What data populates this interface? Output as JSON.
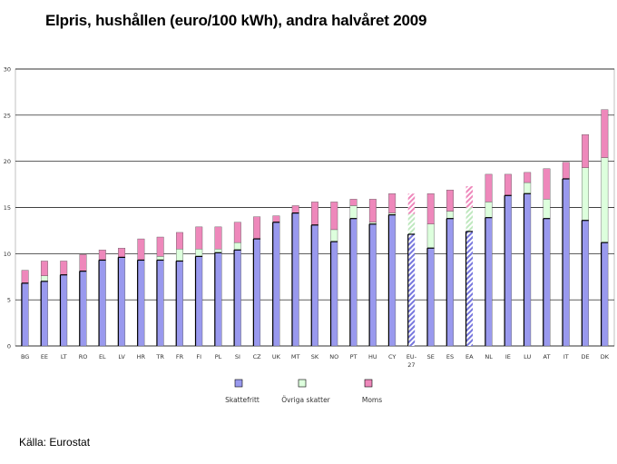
{
  "header": {
    "title": "Elpris, hushållen (euro/100 kWh), andra halvåret 2009"
  },
  "footer": {
    "source": "Källa: Eurostat"
  },
  "colors": {
    "skattefritt": "#9999ee",
    "ovriga": "#ddffdd",
    "moms": "#ee88bb",
    "outline": "#000000",
    "grid": "#000000"
  },
  "chart_data": {
    "type": "bar",
    "stacked": true,
    "title": "Elpris, hushållen (euro/100 kWh), andra halvåret 2009",
    "xlabel": "",
    "ylabel": "",
    "ylim": [
      0,
      30
    ],
    "yticks": [
      0,
      5,
      10,
      15,
      20,
      25,
      30
    ],
    "grid": true,
    "legend_position": "bottom",
    "categories": [
      "BG",
      "EE",
      "LT",
      "RO",
      "EL",
      "LV",
      "HR",
      "TR",
      "FR",
      "FI",
      "PL",
      "SI",
      "CZ",
      "UK",
      "MT",
      "SK",
      "NO",
      "PT",
      "HU",
      "CY",
      "EU-27",
      "SE",
      "ES",
      "EA",
      "NL",
      "IE",
      "LU",
      "AT",
      "IT",
      "DE",
      "DK"
    ],
    "hatched_categories": [
      "EU-27",
      "EA"
    ],
    "series": [
      {
        "name": "Skattefritt",
        "values": [
          6.8,
          7.0,
          7.7,
          8.1,
          9.3,
          9.6,
          9.3,
          9.3,
          9.2,
          9.7,
          10.1,
          10.4,
          11.6,
          13.4,
          14.4,
          13.1,
          11.3,
          13.8,
          13.2,
          14.2,
          12.1,
          10.6,
          13.8,
          12.4,
          13.9,
          16.3,
          16.5,
          13.8,
          18.1,
          13.6,
          11.2
        ]
      },
      {
        "name": "Övriga skatter",
        "values": [
          0.0,
          0.6,
          0.0,
          0.0,
          0.0,
          0.0,
          0.0,
          0.4,
          1.3,
          0.8,
          0.4,
          0.8,
          0.0,
          0.0,
          0.0,
          0.0,
          1.3,
          1.4,
          0.2,
          0.2,
          2.2,
          2.6,
          0.8,
          2.6,
          1.7,
          0.0,
          1.2,
          2.1,
          0.0,
          5.7,
          9.2
        ]
      },
      {
        "name": "Moms",
        "values": [
          1.4,
          1.6,
          1.5,
          1.8,
          1.1,
          1.0,
          2.3,
          2.1,
          1.8,
          2.4,
          2.4,
          2.2,
          2.4,
          0.7,
          0.8,
          2.5,
          3.0,
          0.7,
          2.5,
          2.1,
          2.2,
          3.3,
          2.3,
          2.3,
          3.0,
          2.3,
          1.1,
          3.3,
          1.8,
          3.6,
          5.2
        ]
      }
    ]
  }
}
